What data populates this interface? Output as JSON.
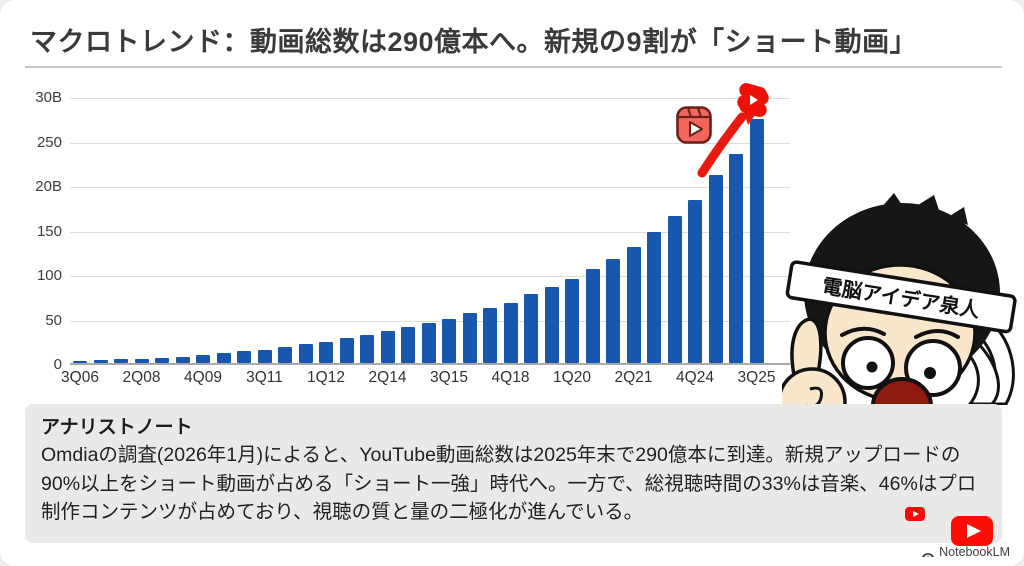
{
  "title": "マクロトレンド：動画総数は290億本へ。新規の9割が「ショート動画」",
  "chart_data": {
    "type": "bar",
    "title": "",
    "xlabel": "",
    "ylabel": "",
    "ylim": [
      0,
      300
    ],
    "grid": true,
    "legend": "none",
    "bar_color": "#1957ae",
    "y_ticks": [
      {
        "label": "30B",
        "value": 300
      },
      {
        "label": "250",
        "value": 250
      },
      {
        "label": "20B",
        "value": 200
      },
      {
        "label": "150",
        "value": 150
      },
      {
        "label": "100",
        "value": 100
      },
      {
        "label": "50",
        "value": 50
      },
      {
        "label": "0",
        "value": 0
      }
    ],
    "x_ticks": [
      {
        "label": "3Q06",
        "bar": 1
      },
      {
        "label": "2Q08",
        "bar": 4
      },
      {
        "label": "4Q09",
        "bar": 7
      },
      {
        "label": "3Q11",
        "bar": 10
      },
      {
        "label": "1Q12",
        "bar": 13
      },
      {
        "label": "2Q14",
        "bar": 16
      },
      {
        "label": "3Q15",
        "bar": 19
      },
      {
        "label": "4Q18",
        "bar": 22
      },
      {
        "label": "1Q20",
        "bar": 25
      },
      {
        "label": "2Q21",
        "bar": 28
      },
      {
        "label": "4Q24",
        "bar": 31
      },
      {
        "label": "3Q25",
        "bar": 34
      }
    ],
    "values": [
      2,
      3,
      4,
      5,
      6,
      7,
      9,
      11,
      13,
      15,
      18,
      21,
      24,
      28,
      32,
      36,
      40,
      45,
      50,
      56,
      62,
      67,
      78,
      85,
      94,
      106,
      117,
      130,
      147,
      165,
      183,
      211,
      235,
      274
    ]
  },
  "annotations": {
    "reels_icon": "video-reels-icon",
    "shorts_icon": "youtube-shorts-icon",
    "arrow_icon": "up-right-arrow-icon"
  },
  "character": {
    "headband_text": "電脳アイデア泉人"
  },
  "note": {
    "heading": "アナリストノート",
    "body": "Omdiaの調査(2026年1月)によると、YouTube動画総数は2025年末で290億本に到達。新規アップロードの90%以上をショート動画が占める「ショート一強」時代へ。一方で、総視聴時間の33%は音楽、46%はプロ制作コンテンツが占めており、視聴の質と量の二極化が進んでいる。"
  },
  "branding": {
    "notebooklm": "NotebookLM"
  },
  "colors": {
    "bar": "#1957ae",
    "accent_red": "#e8190f",
    "youtube_red": "#fc0d05",
    "note_bg": "#e9e9e7"
  }
}
